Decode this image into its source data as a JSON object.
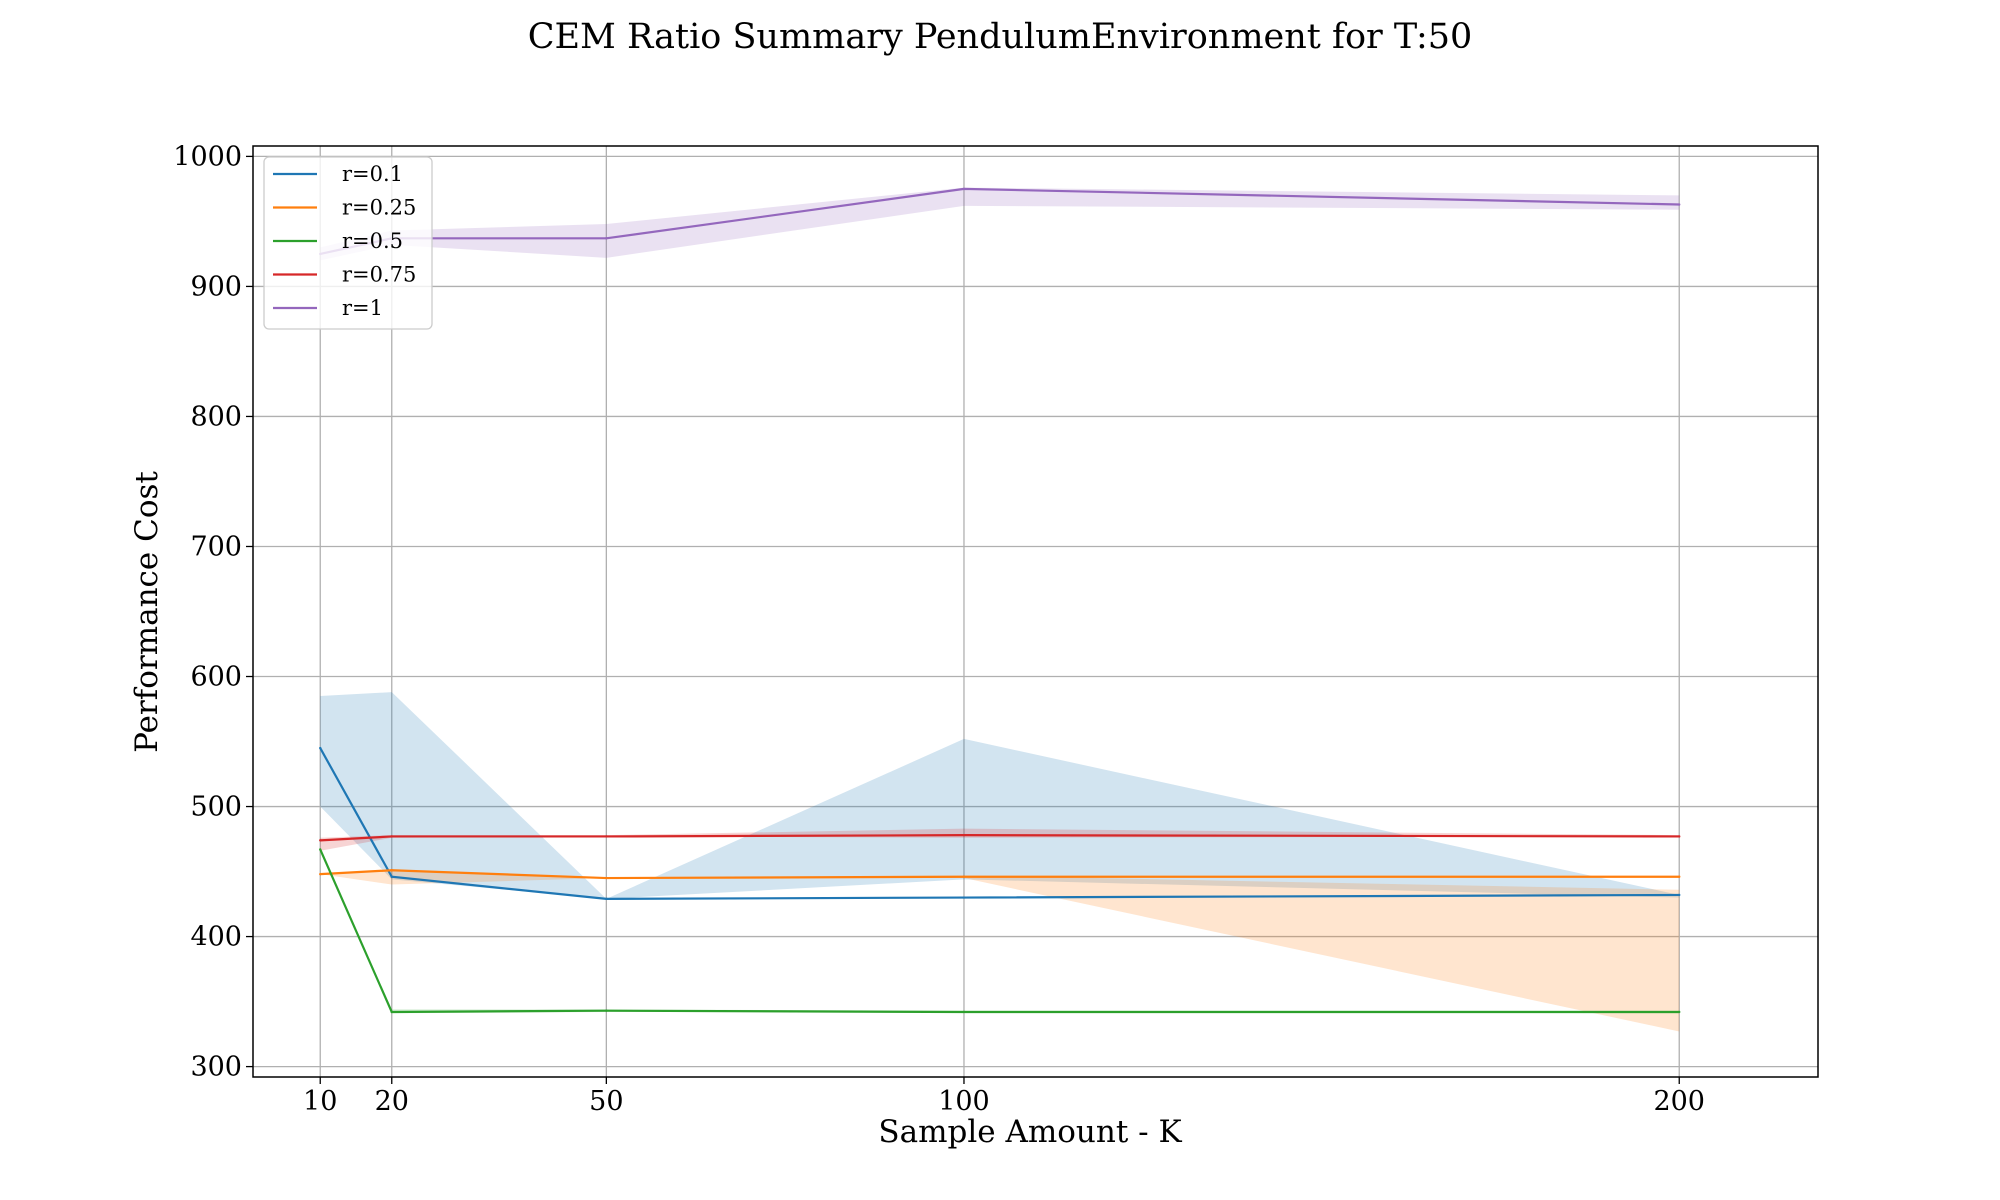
{
  "chart_data": {
    "type": "line",
    "title": "CEM Ratio Summary PendulumEnvironment for T:50",
    "xlabel": "Sample Amount - K",
    "ylabel": "Performance Cost",
    "x": [
      10,
      20,
      50,
      100,
      200
    ],
    "xticks": [
      "10",
      "20",
      "50",
      "100",
      "200"
    ],
    "xlim": [
      0.6,
      219.4
    ],
    "ylim": [
      292,
      1008
    ],
    "yticks": [
      "300",
      "400",
      "500",
      "600",
      "700",
      "800",
      "900",
      "1000"
    ],
    "grid": true,
    "legend_position": "upper-left",
    "series": [
      {
        "name": "r=0.1",
        "color": "#1f77b4",
        "values": [
          545,
          446,
          429,
          430,
          432
        ],
        "lower": [
          500,
          444,
          429,
          444,
          430
        ],
        "upper": [
          585,
          588,
          429,
          552,
          432
        ]
      },
      {
        "name": "r=0.25",
        "color": "#ff7f0e",
        "values": [
          448,
          451,
          445,
          446,
          446
        ],
        "lower": [
          448,
          440,
          445,
          445,
          327
        ],
        "upper": [
          448,
          451,
          445,
          447,
          436
        ]
      },
      {
        "name": "r=0.5",
        "color": "#2ca02c",
        "values": [
          467,
          342,
          343,
          342,
          342
        ],
        "lower": [
          467,
          341,
          342,
          342,
          341
        ],
        "upper": [
          467,
          344,
          344,
          343,
          343
        ]
      },
      {
        "name": "r=0.75",
        "color": "#d62728",
        "values": [
          474,
          477,
          477,
          478,
          477
        ],
        "lower": [
          466,
          476,
          477,
          476,
          477
        ],
        "upper": [
          476,
          478,
          478,
          483,
          478
        ]
      },
      {
        "name": "r=1",
        "color": "#9467bd",
        "values": [
          925,
          937,
          937,
          975,
          963
        ],
        "lower": [
          920,
          932,
          922,
          962,
          959
        ],
        "upper": [
          930,
          943,
          948,
          976,
          970
        ]
      }
    ]
  }
}
